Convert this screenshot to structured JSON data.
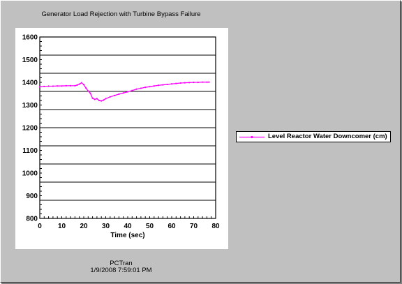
{
  "chart_data": {
    "type": "line",
    "title": "Generator Load Rejection with Turbine Bypass Failure",
    "xlabel": "Time (sec)",
    "ylabel": "",
    "xlim": [
      0,
      80
    ],
    "ylim": [
      800,
      1600
    ],
    "x_ticks": [
      0,
      10,
      20,
      30,
      40,
      50,
      60,
      70,
      80
    ],
    "y_ticks": [
      800,
      900,
      1000,
      1100,
      1200,
      1300,
      1400,
      1500,
      1600
    ],
    "gridlines_y": [
      880,
      960,
      1040,
      1120,
      1200,
      1280,
      1360,
      1440,
      1520
    ],
    "legend_position": "right",
    "series": [
      {
        "name": "Level Reactor Water Downcomer (cm)",
        "color": "#ff00ff",
        "x": [
          0,
          2,
          4,
          6,
          8,
          10,
          12,
          14,
          16,
          17,
          18,
          19,
          20,
          21,
          22,
          23,
          24,
          25,
          26,
          27,
          28,
          29,
          30,
          32,
          34,
          36,
          38,
          40,
          42,
          44,
          46,
          48,
          50,
          52,
          54,
          56,
          58,
          60,
          62,
          64,
          66,
          68,
          70,
          72,
          74,
          76,
          77
        ],
        "y": [
          1380,
          1382,
          1383,
          1383,
          1384,
          1384,
          1385,
          1385,
          1385,
          1388,
          1392,
          1398,
          1390,
          1375,
          1362,
          1352,
          1330,
          1325,
          1328,
          1320,
          1318,
          1322,
          1328,
          1336,
          1342,
          1348,
          1353,
          1358,
          1364,
          1370,
          1374,
          1378,
          1381,
          1384,
          1387,
          1389,
          1391,
          1393,
          1395,
          1397,
          1398,
          1399,
          1400,
          1400,
          1401,
          1401,
          1401
        ]
      }
    ]
  },
  "footer": {
    "app": "PCTran",
    "timestamp": "1/9/2008 7:59:01 PM"
  }
}
